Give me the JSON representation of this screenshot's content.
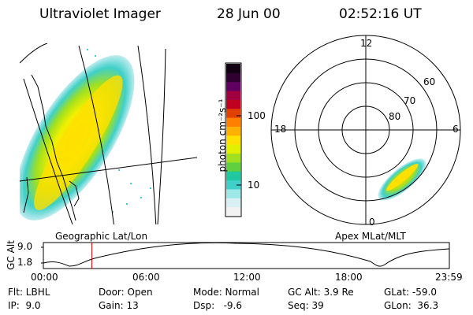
{
  "header": {
    "title": "Ultraviolet Imager",
    "date": "28 Jun 00",
    "time": "02:52:16 UT"
  },
  "colorbar": {
    "unit_label": "photon cm⁻²s⁻¹",
    "ticks": [
      "100",
      "10"
    ],
    "colors": [
      "#f2f2f2",
      "#d8f0f4",
      "#9ee8e8",
      "#40d0c8",
      "#20c8a0",
      "#60d040",
      "#a0e020",
      "#e0f000",
      "#ffe000",
      "#ffb000",
      "#ff8000",
      "#e04000",
      "#c00020",
      "#a00040",
      "#600060",
      "#300030",
      "#100010"
    ]
  },
  "left_map": {
    "caption": "Geographic Lat/Lon"
  },
  "polar_plot": {
    "caption": "Apex MLat/MLT",
    "mlt_labels": [
      "12",
      "18",
      "6",
      "0"
    ],
    "lat_labels": [
      "60",
      "70",
      "80"
    ]
  },
  "altitude_plot": {
    "y_label": "GC Alt",
    "y_ticks": [
      "9.0",
      "1.8"
    ],
    "x_ticks": [
      "00:00",
      "06:00",
      "12:00",
      "18:00",
      "23:59"
    ],
    "current_time_marker_hours": 2.87,
    "marker_color": "#cc0000"
  },
  "status": {
    "flt": "Flt: LBHL",
    "door": "Door: Open",
    "mode": "Mode: Normal",
    "gc_alt": "GC Alt: 3.9 Re",
    "glat": "GLat: -59.0",
    "ip": "IP:  9.0",
    "gain": "Gain: 13",
    "dsp": "Dsp:   -9.6",
    "seq": "Seq: 39",
    "glon": "GLon:  36.3"
  }
}
